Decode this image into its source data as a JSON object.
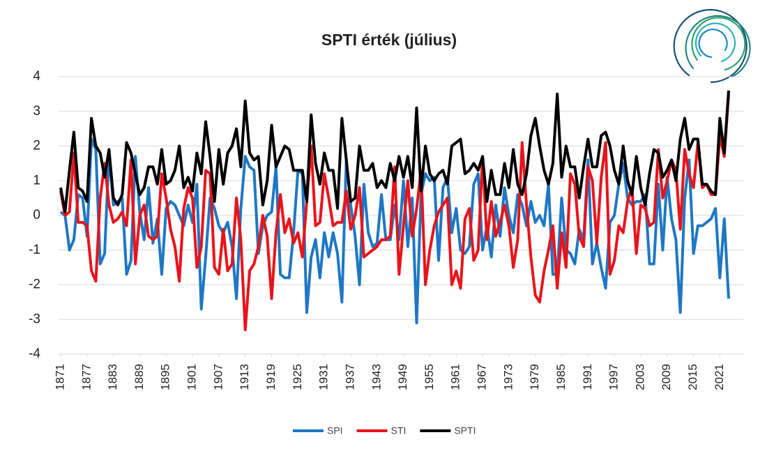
{
  "chart_data": {
    "type": "line",
    "title": "SPTI érték (július)",
    "x": [
      1871,
      1872,
      1873,
      1874,
      1875,
      1876,
      1877,
      1878,
      1879,
      1880,
      1881,
      1882,
      1883,
      1884,
      1885,
      1886,
      1887,
      1888,
      1889,
      1890,
      1891,
      1892,
      1893,
      1894,
      1895,
      1896,
      1897,
      1898,
      1899,
      1900,
      1901,
      1902,
      1903,
      1904,
      1905,
      1906,
      1907,
      1908,
      1909,
      1910,
      1911,
      1912,
      1913,
      1914,
      1915,
      1916,
      1917,
      1918,
      1919,
      1920,
      1921,
      1922,
      1923,
      1924,
      1925,
      1926,
      1927,
      1928,
      1929,
      1930,
      1931,
      1932,
      1933,
      1934,
      1935,
      1936,
      1937,
      1938,
      1939,
      1940,
      1941,
      1942,
      1943,
      1944,
      1945,
      1946,
      1947,
      1948,
      1949,
      1950,
      1951,
      1952,
      1953,
      1954,
      1955,
      1956,
      1957,
      1958,
      1959,
      1960,
      1961,
      1962,
      1963,
      1964,
      1965,
      1966,
      1967,
      1968,
      1969,
      1970,
      1971,
      1972,
      1973,
      1974,
      1975,
      1976,
      1977,
      1978,
      1979,
      1980,
      1981,
      1982,
      1983,
      1984,
      1985,
      1986,
      1987,
      1988,
      1989,
      1990,
      1991,
      1992,
      1993,
      1994,
      1995,
      1996,
      1997,
      1998,
      1999,
      2000,
      2001,
      2002,
      2003,
      2004,
      2005,
      2006,
      2007,
      2008,
      2009,
      2010,
      2011,
      2012,
      2013,
      2014,
      2015,
      2016,
      2017,
      2018,
      2019,
      2020,
      2021,
      2022,
      2023
    ],
    "series": [
      {
        "name": "SPI",
        "color": "#1f77c4",
        "values": [
          0.1,
          0.0,
          -1.0,
          -0.7,
          0.6,
          0.5,
          -0.6,
          2.2,
          1.9,
          -1.4,
          -1.1,
          1.8,
          0.3,
          0.4,
          0.5,
          -1.7,
          -1.3,
          1.7,
          0.1,
          -0.7,
          0.8,
          -0.8,
          -0.1,
          -1.7,
          0.2,
          0.4,
          0.3,
          0.0,
          -0.3,
          0.3,
          -0.2,
          0.9,
          -2.7,
          -1.2,
          0.5,
          0.2,
          -0.3,
          -0.5,
          -0.2,
          -0.9,
          -2.4,
          0.2,
          1.7,
          1.4,
          1.3,
          -1.1,
          -0.3,
          0.0,
          0.1,
          1.4,
          -1.7,
          -1.8,
          -1.8,
          -0.5,
          1.3,
          1.2,
          -2.8,
          -1.2,
          -0.7,
          -1.8,
          -0.5,
          -1.2,
          -0.5,
          -1.1,
          -2.5,
          1.6,
          0.3,
          -0.6,
          -2.0,
          0.9,
          -0.5,
          -0.9,
          -0.8,
          0.6,
          -0.7,
          -0.7,
          0.3,
          -0.7,
          1.0,
          -0.9,
          0.5,
          -3.1,
          0.6,
          1.2,
          1.0,
          1.1,
          -1.3,
          0.8,
          1.1,
          -0.5,
          0.2,
          -1.0,
          -1.1,
          -0.9,
          0.9,
          1.2,
          -1.0,
          -0.3,
          -1.2,
          0.3,
          -0.6,
          0.8,
          0.0,
          -0.5,
          0.6,
          0.3,
          -0.3,
          0.4,
          -0.2,
          0.0,
          -0.3,
          0.9,
          -1.7,
          -1.7,
          0.5,
          -1.0,
          -1.1,
          -1.4,
          -0.4,
          -0.7,
          1.6,
          -1.4,
          -0.8,
          -1.5,
          -2.1,
          -0.2,
          0.0,
          0.9,
          1.5,
          0.5,
          0.3,
          0.4,
          0.4,
          0.6,
          -1.4,
          -1.4,
          0.9,
          -1.0,
          1.1,
          -0.1,
          -0.7,
          -2.8,
          0.5,
          1.6,
          -1.1,
          -0.3,
          -0.3,
          -0.2,
          -0.1,
          0.2,
          -1.8,
          -0.1,
          -2.4
        ]
      },
      {
        "name": "STI",
        "color": "#e8141b",
        "values": [
          0.7,
          0.0,
          0.1,
          1.8,
          -0.2,
          -0.2,
          -0.3,
          -1.6,
          -1.9,
          0.5,
          1.5,
          0.3,
          -0.2,
          -0.1,
          0.1,
          -0.3,
          1.6,
          -1.4,
          0.0,
          0.3,
          -0.6,
          -0.7,
          -0.6,
          1.2,
          0.5,
          -0.4,
          -0.9,
          -1.9,
          0.2,
          0.8,
          0.5,
          -1.5,
          -0.9,
          1.3,
          1.2,
          -1.5,
          -1.7,
          -0.4,
          -1.6,
          -1.4,
          0.5,
          -0.7,
          -3.3,
          -1.6,
          -1.4,
          -0.9,
          0.0,
          -0.6,
          -2.4,
          -0.5,
          0.6,
          -0.5,
          -0.1,
          -0.8,
          -0.5,
          -1.2,
          0.4,
          2.0,
          -0.3,
          -0.2,
          1.2,
          0.5,
          -0.3,
          -0.2,
          -0.2,
          0.7,
          -0.4,
          0.0,
          0.8,
          -1.2,
          -1.1,
          -1.0,
          -0.9,
          -0.7,
          -0.7,
          -0.6,
          1.4,
          -1.7,
          -0.3,
          1.0,
          -0.6,
          0.2,
          1.3,
          -2.0,
          -1.0,
          -0.3,
          0.1,
          0.3,
          0.5,
          -2.0,
          -1.6,
          -2.1,
          -0.1,
          0.2,
          -1.3,
          -1.0,
          1.7,
          -0.7,
          0.4,
          -0.6,
          -0.2,
          0.3,
          -0.3,
          -1.5,
          -0.7,
          2.1,
          0.3,
          -1.2,
          -2.3,
          -2.5,
          -1.6,
          -1.0,
          -0.3,
          -2.1,
          -0.5,
          -1.5,
          1.2,
          0.9,
          -0.6,
          -0.9,
          1.4,
          1.0,
          -0.8,
          1.1,
          2.1,
          -1.7,
          -1.3,
          -0.3,
          -0.5,
          0.4,
          0.8,
          -1.1,
          0.3,
          0.2,
          -0.3,
          -0.2,
          1.9,
          0.5,
          1.0,
          1.6,
          1.3,
          -0.4,
          1.9,
          1.2,
          0.8,
          2.1,
          0.8,
          0.9,
          0.6,
          0.6,
          2.3,
          1.7,
          3.5
        ]
      },
      {
        "name": "SPTI",
        "color": "#000000",
        "values": [
          0.8,
          0.1,
          1.3,
          2.4,
          0.8,
          0.7,
          0.4,
          2.8,
          2.0,
          1.8,
          1.1,
          1.9,
          0.5,
          0.3,
          0.6,
          2.1,
          1.8,
          1.2,
          0.6,
          0.8,
          1.4,
          1.4,
          0.9,
          1.9,
          0.9,
          1.0,
          1.3,
          2.0,
          0.8,
          1.1,
          0.7,
          1.8,
          1.2,
          2.7,
          1.7,
          0.4,
          1.9,
          0.9,
          1.8,
          2.0,
          2.5,
          1.4,
          3.3,
          1.8,
          1.6,
          1.7,
          0.3,
          1.0,
          2.6,
          1.4,
          1.7,
          2.0,
          1.9,
          1.3,
          1.3,
          1.3,
          0.4,
          2.9,
          1.5,
          0.9,
          1.8,
          1.3,
          1.3,
          0.2,
          2.8,
          1.6,
          0.4,
          0.5,
          2.0,
          1.3,
          1.3,
          1.5,
          0.8,
          1.0,
          0.8,
          1.5,
          1.0,
          1.7,
          1.1,
          1.7,
          0.8,
          3.1,
          0.7,
          2.0,
          1.2,
          1.0,
          1.2,
          1.3,
          0.9,
          2.0,
          2.1,
          2.2,
          1.2,
          1.3,
          1.5,
          1.3,
          1.7,
          0.4,
          1.3,
          0.6,
          0.6,
          1.5,
          0.8,
          1.9,
          0.9,
          0.6,
          1.2,
          2.3,
          2.8,
          2.0,
          1.3,
          0.9,
          1.5,
          3.5,
          1.1,
          2.0,
          1.4,
          1.4,
          0.5,
          1.4,
          2.2,
          1.4,
          1.4,
          2.3,
          2.4,
          2.0,
          1.3,
          0.9,
          2.0,
          1.0,
          0.6,
          1.7,
          0.8,
          0.3,
          1.2,
          1.9,
          1.8,
          1.1,
          1.3,
          1.6,
          1.0,
          2.2,
          2.8,
          1.9,
          2.2,
          2.2,
          0.9,
          0.9,
          0.7,
          0.6,
          2.8,
          1.8,
          3.6
        ]
      }
    ],
    "xlim": [
      1871,
      2023
    ],
    "xticks": [
      1871,
      1877,
      1883,
      1889,
      1895,
      1901,
      1907,
      1913,
      1919,
      1925,
      1931,
      1937,
      1943,
      1949,
      1955,
      1961,
      1967,
      1973,
      1979,
      1985,
      1991,
      1997,
      2003,
      2009,
      2015,
      2021
    ],
    "ylim": [
      -4,
      4
    ],
    "yticks": [
      -4,
      -3,
      -2,
      -1,
      0,
      1,
      2,
      3,
      4
    ],
    "grid": true,
    "legend": "bottom"
  }
}
